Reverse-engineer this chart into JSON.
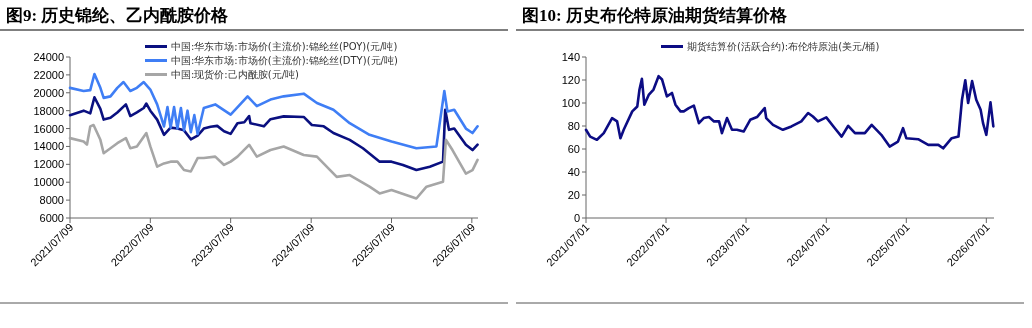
{
  "chart_data": [
    {
      "type": "line",
      "title": "图9:  历史锦纶、乙内酰胺价格",
      "legend": "top",
      "grid": false,
      "xlim": [
        "2021-07-09",
        "2026-08-06"
      ],
      "ylim": [
        6000,
        24000
      ],
      "yticks": [
        6000,
        8000,
        10000,
        12000,
        14000,
        16000,
        18000,
        20000,
        22000,
        24000
      ],
      "xticks": [
        {
          "value": "2021-07-09",
          "label": "2021/07/09"
        },
        {
          "value": "2022-07-09",
          "label": "2022/07/09"
        },
        {
          "value": "2023-07-09",
          "label": "2023/07/09"
        },
        {
          "value": "2024-07-09",
          "label": "2024/07/09"
        },
        {
          "value": "2025-07-09",
          "label": "2025/07/09"
        },
        {
          "value": "2026-07-09",
          "label": "2026/07/09"
        }
      ],
      "series": [
        {
          "name": "中国:华东市场:市场价(主流价):锦纶丝(POY)(元/吨)",
          "color": "#0a1080",
          "x": [
            "2021-07-09",
            "2021-09-09",
            "2021-10-09",
            "2021-10-28",
            "2021-11-24",
            "2021-12-09",
            "2022-01-09",
            "2022-02-09",
            "2022-03-20",
            "2022-04-09",
            "2022-05-09",
            "2022-06-09",
            "2022-06-21",
            "2022-07-09",
            "2022-08-09",
            "2022-09-09",
            "2022-10-09",
            "2022-11-09",
            "2022-12-09",
            "2023-01-09",
            "2023-02-09",
            "2023-03-09",
            "2023-04-09",
            "2023-05-09",
            "2023-06-09",
            "2023-07-09",
            "2023-08-09",
            "2023-09-09",
            "2023-10-01",
            "2023-10-07",
            "2023-12-07",
            "2024-01-06",
            "2024-03-06",
            "2024-06-05",
            "2024-07-12",
            "2024-09-04",
            "2024-10-18",
            "2024-12-31",
            "2025-03-01",
            "2025-05-16",
            "2025-07-09",
            "2025-08-30",
            "2025-10-30",
            "2025-12-30",
            "2026-02-28",
            "2026-03-10",
            "2026-03-27",
            "2026-04-20",
            "2026-06-12",
            "2026-07-12",
            "2026-08-04"
          ],
          "values": [
            17500,
            18000,
            17700,
            19500,
            18200,
            17000,
            17200,
            17800,
            18700,
            17400,
            17800,
            18300,
            18800,
            18000,
            17000,
            15300,
            16100,
            16000,
            15800,
            14800,
            15200,
            16000,
            16200,
            16300,
            15700,
            15400,
            16600,
            16700,
            17400,
            16600,
            16250,
            17050,
            17360,
            17300,
            16400,
            16250,
            15500,
            14740,
            13800,
            12300,
            12300,
            11930,
            11360,
            11740,
            12300,
            18100,
            15860,
            16000,
            14200,
            13600,
            14200
          ]
        },
        {
          "name": "中国:华东市场:市场价(主流价):锦纶丝(DTY)(元/吨)",
          "color": "#3f7ef5",
          "x": [
            "2021-07-09",
            "2021-09-09",
            "2021-10-09",
            "2021-10-28",
            "2021-11-24",
            "2021-12-09",
            "2022-01-09",
            "2022-02-09",
            "2022-03-09",
            "2022-04-09",
            "2022-05-09",
            "2022-06-09",
            "2022-07-09",
            "2022-08-09",
            "2022-09-09",
            "2022-09-25",
            "2022-10-09",
            "2022-10-25",
            "2022-11-09",
            "2022-11-25",
            "2022-12-09",
            "2022-12-25",
            "2023-01-09",
            "2023-01-25",
            "2023-02-09",
            "2023-03-09",
            "2023-04-30",
            "2023-07-09",
            "2023-09-24",
            "2023-11-05",
            "2024-01-06",
            "2024-03-06",
            "2024-06-05",
            "2024-08-04",
            "2024-10-18",
            "2024-12-31",
            "2025-03-31",
            "2025-07-09",
            "2025-10-30",
            "2026-01-29",
            "2026-03-06",
            "2026-03-20",
            "2026-04-20",
            "2026-06-12",
            "2026-07-12",
            "2026-08-04"
          ],
          "values": [
            20550,
            20200,
            20300,
            22100,
            20550,
            19430,
            19600,
            20550,
            21200,
            20200,
            20550,
            21200,
            20360,
            18700,
            16240,
            18400,
            16100,
            18400,
            16000,
            18300,
            15800,
            18000,
            15600,
            17500,
            15400,
            18300,
            18700,
            17550,
            19600,
            18500,
            19240,
            19600,
            19900,
            18860,
            18100,
            16600,
            15300,
            14550,
            13800,
            14000,
            20200,
            17900,
            18100,
            16000,
            15500,
            16250
          ]
        },
        {
          "name": "中国:现货价:己内酰胺(元/吨)",
          "color": "#a6a6a6",
          "x": [
            "2021-07-09",
            "2021-09-09",
            "2021-09-24",
            "2021-10-09",
            "2021-10-24",
            "2021-11-24",
            "2021-12-09",
            "2022-01-09",
            "2022-02-09",
            "2022-03-20",
            "2022-04-09",
            "2022-05-09",
            "2022-06-21",
            "2022-07-09",
            "2022-08-09",
            "2022-09-09",
            "2022-10-09",
            "2022-11-09",
            "2022-12-09",
            "2023-01-09",
            "2023-02-09",
            "2023-03-09",
            "2023-04-30",
            "2023-06-09",
            "2023-07-09",
            "2023-08-09",
            "2023-10-01",
            "2023-11-05",
            "2024-01-06",
            "2024-03-06",
            "2024-06-05",
            "2024-08-04",
            "2024-11-02",
            "2024-12-31",
            "2025-03-31",
            "2025-05-16",
            "2025-07-09",
            "2025-10-30",
            "2025-12-15",
            "2026-02-28",
            "2026-03-13",
            "2026-04-12",
            "2026-06-12",
            "2026-07-12",
            "2026-08-04"
          ],
          "values": [
            14930,
            14550,
            14200,
            16240,
            16400,
            14740,
            13240,
            13800,
            14360,
            14930,
            13800,
            14000,
            15500,
            14000,
            11740,
            12100,
            12300,
            12300,
            11360,
            11200,
            12700,
            12700,
            12860,
            11930,
            12300,
            12860,
            14180,
            12860,
            13600,
            14000,
            13050,
            12860,
            10600,
            10800,
            9500,
            8750,
            9130,
            8180,
            9500,
            10060,
            14740,
            13600,
            10970,
            11360,
            12500
          ]
        }
      ]
    },
    {
      "type": "line",
      "title": "图10:  历史布伦特原油期货结算价格",
      "legend": "top",
      "grid": false,
      "xlim": [
        "2021-07-01",
        "2026-08-05"
      ],
      "ylim": [
        0,
        140
      ],
      "yticks": [
        0,
        20,
        40,
        60,
        80,
        100,
        120,
        140
      ],
      "xticks": [
        {
          "value": "2021-07-01",
          "label": "2021/07/01"
        },
        {
          "value": "2022-07-01",
          "label": "2022/07/01"
        },
        {
          "value": "2023-07-01",
          "label": "2023/07/01"
        },
        {
          "value": "2024-07-01",
          "label": "2024/07/01"
        },
        {
          "value": "2025-07-01",
          "label": "2025/07/01"
        },
        {
          "value": "2026-07-01",
          "label": "2026/07/01"
        }
      ],
      "series": [
        {
          "name": "期货结算价(活跃合约):布伦特原油(美元/桶)",
          "color": "#0c0c84",
          "x": [
            "2021-07-01",
            "2021-07-20",
            "2021-08-20",
            "2021-09-20",
            "2021-10-28",
            "2021-11-20",
            "2021-12-05",
            "2021-12-20",
            "2022-01-28",
            "2022-02-20",
            "2022-03-02",
            "2022-03-13",
            "2022-03-24",
            "2022-04-13",
            "2022-05-05",
            "2022-05-28",
            "2022-06-13",
            "2022-07-05",
            "2022-07-28",
            "2022-08-13",
            "2022-09-05",
            "2022-09-20",
            "2022-10-13",
            "2022-11-05",
            "2022-11-28",
            "2022-12-20",
            "2023-01-13",
            "2023-02-05",
            "2023-02-28",
            "2023-03-13",
            "2023-04-05",
            "2023-04-28",
            "2023-05-20",
            "2023-06-20",
            "2023-07-20",
            "2023-08-20",
            "2023-09-24",
            "2023-10-01",
            "2023-11-01",
            "2023-12-16",
            "2024-01-24",
            "2024-03-09",
            "2024-04-09",
            "2024-05-01",
            "2024-05-24",
            "2024-07-01",
            "2024-08-09",
            "2024-09-09",
            "2024-10-09",
            "2024-11-09",
            "2024-12-24",
            "2025-01-24",
            "2025-03-09",
            "2025-04-16",
            "2025-05-24",
            "2025-06-16",
            "2025-07-01",
            "2025-08-24",
            "2025-10-09",
            "2025-11-24",
            "2025-12-16",
            "2026-01-24",
            "2026-02-24",
            "2026-03-12",
            "2026-03-27",
            "2026-04-09",
            "2026-04-27",
            "2026-05-16",
            "2026-06-05",
            "2026-06-16",
            "2026-07-01",
            "2026-07-20",
            "2026-08-02"
          ],
          "values": [
            76.7,
            70.8,
            68,
            73.8,
            86.9,
            84,
            69.4,
            76.7,
            92.7,
            97,
            111.7,
            121,
            98.5,
            107,
            111.7,
            123.3,
            120.4,
            105.8,
            108.7,
            98.5,
            92.7,
            92.7,
            95.6,
            97.7,
            82.5,
            86.9,
            87.8,
            84,
            84,
            73.8,
            86.9,
            76.7,
            76.7,
            75.2,
            85.4,
            87.8,
            95.6,
            86.9,
            81,
            76.7,
            79.6,
            84,
            91.3,
            88.3,
            84,
            87.5,
            78.1,
            70.8,
            80.2,
            73.8,
            73.8,
            81,
            72.3,
            62.1,
            66.5,
            78.1,
            69.4,
            68.5,
            63.6,
            63.6,
            60.6,
            69.4,
            70.8,
            102.9,
            119.8,
            100,
            119,
            102.9,
            94.2,
            82.5,
            72.3,
            100.6,
            79.6
          ]
        }
      ]
    }
  ]
}
